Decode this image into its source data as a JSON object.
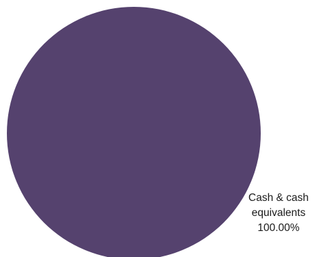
{
  "chart_data": {
    "type": "pie",
    "title": "",
    "slices": [
      {
        "label": "Cash & cash equivalents",
        "label_line1": "Cash & cash",
        "label_line2": "equivalents",
        "value": 100.0,
        "value_text": "100.00%",
        "color": "#55426e"
      }
    ],
    "legend": "none"
  }
}
